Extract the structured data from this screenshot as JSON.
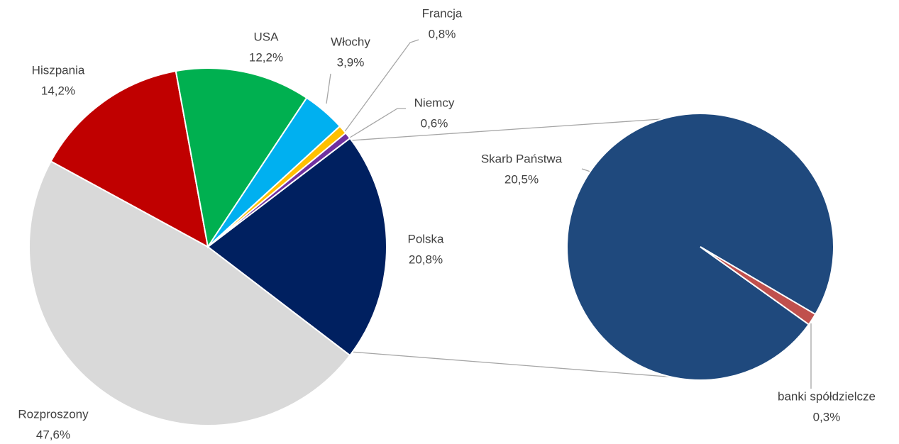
{
  "chart_data": {
    "type": "pie",
    "categories": [
      "Polska",
      "Rozproszony",
      "Hiszpania",
      "USA",
      "Włochy",
      "Francja",
      "Niemcy"
    ],
    "values": [
      20.8,
      47.6,
      14.2,
      12.2,
      3.9,
      0.8,
      0.6
    ],
    "value_labels": [
      "20,8%",
      "47,6%",
      "14,2%",
      "12,2%",
      "3,9%",
      "0,8%",
      "0,6%"
    ],
    "colors": [
      "#002060",
      "#d9d9d9",
      "#c00000",
      "#00b050",
      "#00b0f0",
      "#ffc000",
      "#7030a0"
    ],
    "secondary": {
      "categories": [
        "Skarb Państwa",
        "banki spółdzielcze"
      ],
      "values": [
        20.5,
        0.3
      ],
      "value_labels": [
        "20,5%",
        "0,3%"
      ],
      "colors": [
        "#1f497d",
        "#c0504d"
      ]
    }
  }
}
